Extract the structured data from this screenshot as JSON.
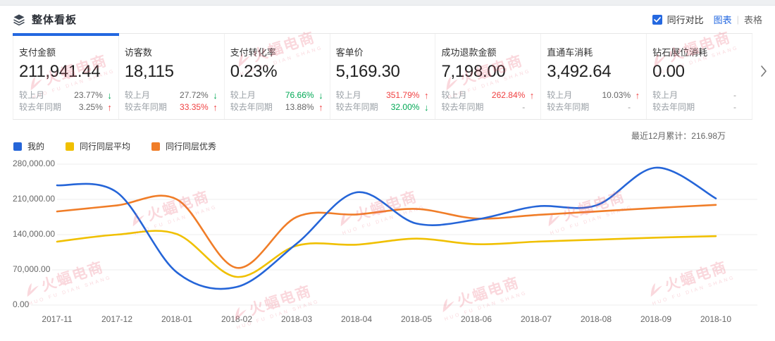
{
  "colors": {
    "accent": "#2468e0",
    "green": "#00a854",
    "red": "#f04142",
    "grid": "#ececec",
    "watermark": "rgba(236,98,120,0.25)"
  },
  "header": {
    "title": "整体看板",
    "peer_compare_label": "同行对比",
    "peer_compare_checked": true,
    "view_chart_label": "图表",
    "view_divider": "|",
    "view_table_label": "表格"
  },
  "cards": [
    {
      "selected": true,
      "title": "支付金额",
      "value": "211,941.44",
      "rows": [
        {
          "label": "较上月",
          "value": "23.77%",
          "value_color": "#666666",
          "arrow_glyph": "↓",
          "arrow_color": "#00a854"
        },
        {
          "label": "较去年同期",
          "value": "3.25%",
          "value_color": "#666666",
          "arrow_glyph": "↑",
          "arrow_color": "#f04142"
        }
      ]
    },
    {
      "selected": false,
      "title": "访客数",
      "value": "18,115",
      "rows": [
        {
          "label": "较上月",
          "value": "27.72%",
          "value_color": "#666666",
          "arrow_glyph": "↓",
          "arrow_color": "#00a854"
        },
        {
          "label": "较去年同期",
          "value": "33.35%",
          "value_color": "#f04142",
          "arrow_glyph": "↑",
          "arrow_color": "#f04142"
        }
      ]
    },
    {
      "selected": false,
      "title": "支付转化率",
      "value": "0.23%",
      "rows": [
        {
          "label": "较上月",
          "value": "76.66%",
          "value_color": "#00a854",
          "arrow_glyph": "↓",
          "arrow_color": "#00a854"
        },
        {
          "label": "较去年同期",
          "value": "13.88%",
          "value_color": "#666666",
          "arrow_glyph": "↑",
          "arrow_color": "#f04142"
        }
      ]
    },
    {
      "selected": false,
      "title": "客单价",
      "value": "5,169.30",
      "rows": [
        {
          "label": "较上月",
          "value": "351.79%",
          "value_color": "#f04142",
          "arrow_glyph": "↑",
          "arrow_color": "#f04142"
        },
        {
          "label": "较去年同期",
          "value": "32.00%",
          "value_color": "#00a854",
          "arrow_glyph": "↓",
          "arrow_color": "#00a854"
        }
      ]
    },
    {
      "selected": false,
      "title": "成功退款金额",
      "value": "7,198.00",
      "rows": [
        {
          "label": "较上月",
          "value": "262.84%",
          "value_color": "#f04142",
          "arrow_glyph": "↑",
          "arrow_color": "#f04142"
        },
        {
          "label": "较去年同期",
          "value": "-",
          "value_color": "#999999",
          "arrow_glyph": "",
          "arrow_color": ""
        }
      ]
    },
    {
      "selected": false,
      "title": "直通车消耗",
      "value": "3,492.64",
      "rows": [
        {
          "label": "较上月",
          "value": "10.03%",
          "value_color": "#666666",
          "arrow_glyph": "↑",
          "arrow_color": "#f04142"
        },
        {
          "label": "较去年同期",
          "value": "-",
          "value_color": "#999999",
          "arrow_glyph": "",
          "arrow_color": ""
        }
      ]
    },
    {
      "selected": false,
      "title": "钻石展位消耗",
      "value": "0.00",
      "rows": [
        {
          "label": "较上月",
          "value": "-",
          "value_color": "#999999",
          "arrow_glyph": "",
          "arrow_color": ""
        },
        {
          "label": "较去年同期",
          "value": "-",
          "value_color": "#999999",
          "arrow_glyph": "",
          "arrow_color": ""
        }
      ]
    }
  ],
  "summary": {
    "label": "最近12月累计：216.98万"
  },
  "chart_data": {
    "type": "line",
    "title": "",
    "xlabel": "",
    "ylabel": "",
    "grid": true,
    "legend_position": "top-left",
    "ylim": [
      0,
      280000
    ],
    "yticks": [
      {
        "value": 0,
        "label": "0.00"
      },
      {
        "value": 70000,
        "label": "70,000.00"
      },
      {
        "value": 140000,
        "label": "140,000.00"
      },
      {
        "value": 210000,
        "label": "210,000.00"
      },
      {
        "value": 280000,
        "label": "280,000.00"
      }
    ],
    "categories": [
      "2017-11",
      "2017-12",
      "2018-01",
      "2018-02",
      "2018-03",
      "2018-04",
      "2018-05",
      "2018-06",
      "2018-07",
      "2018-08",
      "2018-09",
      "2018-10"
    ],
    "series": [
      {
        "name": "我的",
        "color": "#2565d8",
        "values": [
          238000,
          224000,
          65000,
          36000,
          122000,
          224000,
          162000,
          170000,
          196000,
          198000,
          273000,
          211941
        ]
      },
      {
        "name": "同行同层平均",
        "color": "#f0c000",
        "values": [
          126000,
          140000,
          141000,
          56000,
          118000,
          120000,
          132000,
          121000,
          126000,
          130000,
          134000,
          137000
        ]
      },
      {
        "name": "同行同层优秀",
        "color": "#f07d28",
        "values": [
          186000,
          198000,
          210000,
          74000,
          175000,
          180000,
          191000,
          172000,
          179000,
          186000,
          193000,
          199000
        ]
      }
    ]
  },
  "watermark": {
    "text": "火蝠电商",
    "subtext": "HUO FU DIAN SHANG"
  }
}
